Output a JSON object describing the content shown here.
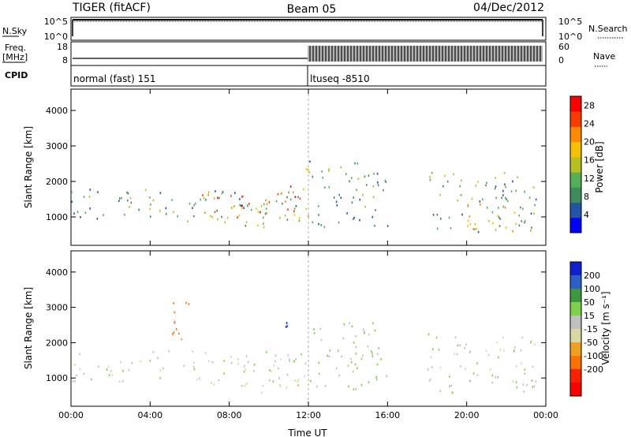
{
  "header": {
    "radar": "TIGER (fitACF)",
    "beam": "Beam 05",
    "date": "04/Dec/2012"
  },
  "params": {
    "nsky_label": "N.Sky",
    "nsearch_label": "N.Search",
    "freq_label_top": "Freq.",
    "freq_label_unit": "[MHz]",
    "nave_label": "Nave",
    "cpid_label": "CPID",
    "nsky_ticks": [
      "10^5",
      "10^0"
    ],
    "nsearch_ticks": [
      "10^5",
      "10^0"
    ],
    "freq_ticks": [
      "18",
      "8"
    ],
    "nave_ticks": [
      "60",
      "0"
    ],
    "cpid_modes": [
      {
        "label": "normal (fast) 151",
        "start_hour": 0,
        "end_hour": 12
      },
      {
        "label": "ltuseq -8510",
        "start_hour": 12,
        "end_hour": 24
      }
    ]
  },
  "colors": {
    "power_scale": [
      "#0000ff",
      "#2255aa",
      "#3c8c5c",
      "#55b055",
      "#b8c020",
      "#f5c000",
      "#ff8a00",
      "#ff3a00",
      "#ff0000"
    ],
    "velocity_scale": [
      "#1020d0",
      "#2a60c8",
      "#3c9a3c",
      "#7ed04a",
      "#c0c0c0",
      "#d8d8a0",
      "#f0a020",
      "#ff7000",
      "#ff2000",
      "#ff0000"
    ]
  },
  "chart_data": [
    {
      "type": "heatmap",
      "name": "power",
      "x_range": [
        0,
        24
      ],
      "y_range": [
        200,
        4600
      ],
      "ylabel": "Slant Range [km]",
      "yticks": [
        1000,
        2000,
        3000,
        4000
      ],
      "ytick_labels": [
        "1000",
        "2000",
        "3000",
        "4000"
      ],
      "colorbar": {
        "label": "Power [dB]",
        "ticks": [
          4,
          8,
          12,
          16,
          20,
          24,
          28
        ],
        "tick_labels": [
          "4",
          "8",
          "12",
          "16",
          "20",
          "24",
          "28"
        ],
        "range": [
          0,
          30
        ]
      },
      "regions": [
        {
          "x": [
            0,
            12
          ],
          "y": [
            900,
            1800
          ],
          "value": 10
        },
        {
          "x": [
            6,
            12
          ],
          "y": [
            1000,
            1700
          ],
          "value": 22
        },
        {
          "x": [
            7,
            10
          ],
          "y": [
            700,
            1500
          ],
          "value": 14
        },
        {
          "x": [
            11,
            12
          ],
          "y": [
            1700,
            2400
          ],
          "value": 22
        },
        {
          "x": [
            12,
            16
          ],
          "y": [
            700,
            2600
          ],
          "value": 10
        },
        {
          "x": [
            18,
            23.5
          ],
          "y": [
            600,
            2300
          ],
          "value": 11
        },
        {
          "x": [
            20,
            23.5
          ],
          "y": [
            600,
            1400
          ],
          "value": 18
        }
      ]
    },
    {
      "type": "heatmap",
      "name": "velocity",
      "x_range": [
        0,
        24
      ],
      "xlabel": "Time UT",
      "xticks": [
        0,
        4,
        8,
        12,
        16,
        20,
        24
      ],
      "xtick_labels": [
        "00:00",
        "04:00",
        "08:00",
        "12:00",
        "16:00",
        "20:00",
        "00:00"
      ],
      "y_range": [
        200,
        4600
      ],
      "ylabel": "Slant Range [km]",
      "yticks": [
        1000,
        2000,
        3000,
        4000
      ],
      "ytick_labels": [
        "1000",
        "2000",
        "3000",
        "4000"
      ],
      "colorbar": {
        "label": "Velocity [m s⁻¹]",
        "ticks": [
          -200,
          -100,
          -50,
          -15,
          15,
          50,
          100,
          200
        ],
        "tick_labels": [
          "-200",
          "-100",
          "-50",
          "-15",
          "15",
          "50",
          "100",
          "200"
        ]
      },
      "regions": [
        {
          "x": [
            0,
            12
          ],
          "y": [
            900,
            1800
          ],
          "value": 0
        },
        {
          "x": [
            7,
            12
          ],
          "y": [
            600,
            900
          ],
          "value": -40
        },
        {
          "x": [
            12,
            16
          ],
          "y": [
            700,
            2600
          ],
          "value": 20
        },
        {
          "x": [
            18,
            23.5
          ],
          "y": [
            600,
            2300
          ],
          "value": 0
        },
        {
          "x": [
            5,
            6
          ],
          "y": [
            2000,
            3500
          ],
          "value": -120
        },
        {
          "x": [
            10,
            11
          ],
          "y": [
            2200,
            2600
          ],
          "value": 200
        }
      ]
    }
  ]
}
